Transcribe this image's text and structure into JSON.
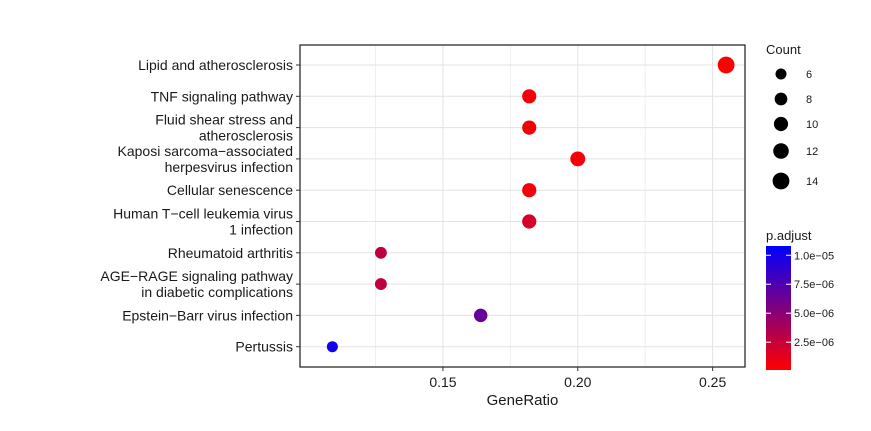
{
  "chart_data": {
    "type": "scatter",
    "xlabel": "GeneRatio",
    "ylabel": "",
    "xlim": [
      0.097,
      0.262
    ],
    "x_ticks": [
      {
        "value": 0.15,
        "label": "0.15"
      },
      {
        "value": 0.2,
        "label": "0.20"
      },
      {
        "value": 0.25,
        "label": "0.25"
      }
    ],
    "grid": true,
    "legend_position": "right",
    "categories": [
      [
        "Lipid and atherosclerosis"
      ],
      [
        "TNF signaling pathway"
      ],
      [
        "Fluid shear stress and",
        "atherosclerosis"
      ],
      [
        "Kaposi sarcoma−associated",
        "herpesvirus infection"
      ],
      [
        "Cellular senescence"
      ],
      [
        "Human T−cell leukemia virus",
        "1 infection"
      ],
      [
        "Rheumatoid arthritis"
      ],
      [
        "AGE−RAGE signaling pathway",
        "in diabetic complications"
      ],
      [
        "Epstein−Barr virus infection"
      ],
      [
        "Pertussis"
      ]
    ],
    "points": [
      {
        "x": 0.255,
        "count": 14,
        "padjust": 1e-07
      },
      {
        "x": 0.182,
        "count": 10,
        "padjust": 5e-07
      },
      {
        "x": 0.182,
        "count": 10,
        "padjust": 5e-07
      },
      {
        "x": 0.2,
        "count": 11,
        "padjust": 5e-07
      },
      {
        "x": 0.182,
        "count": 10,
        "padjust": 5e-07
      },
      {
        "x": 0.182,
        "count": 10,
        "padjust": 1.8e-06
      },
      {
        "x": 0.127,
        "count": 7,
        "padjust": 2.8e-06
      },
      {
        "x": 0.127,
        "count": 7,
        "padjust": 2.8e-06
      },
      {
        "x": 0.164,
        "count": 9,
        "padjust": 6.5e-06
      },
      {
        "x": 0.109,
        "count": 6,
        "padjust": 1e-05
      }
    ],
    "size_legend": {
      "title": "Count",
      "values": [
        6,
        8,
        10,
        12,
        14
      ],
      "labels": [
        "6",
        "8",
        "10",
        "12",
        "14"
      ]
    },
    "color_legend": {
      "title": "p.adjust",
      "min": 1e-07,
      "max": 1.08e-05,
      "low_color": "#ff0000",
      "high_color": "#0000ff",
      "ticks": [
        {
          "value": 1e-05,
          "label": "1.0e−05"
        },
        {
          "value": 7.5e-06,
          "label": "7.5e−06"
        },
        {
          "value": 5e-06,
          "label": "5.0e−06"
        },
        {
          "value": 2.5e-06,
          "label": "2.5e−06"
        }
      ]
    }
  }
}
